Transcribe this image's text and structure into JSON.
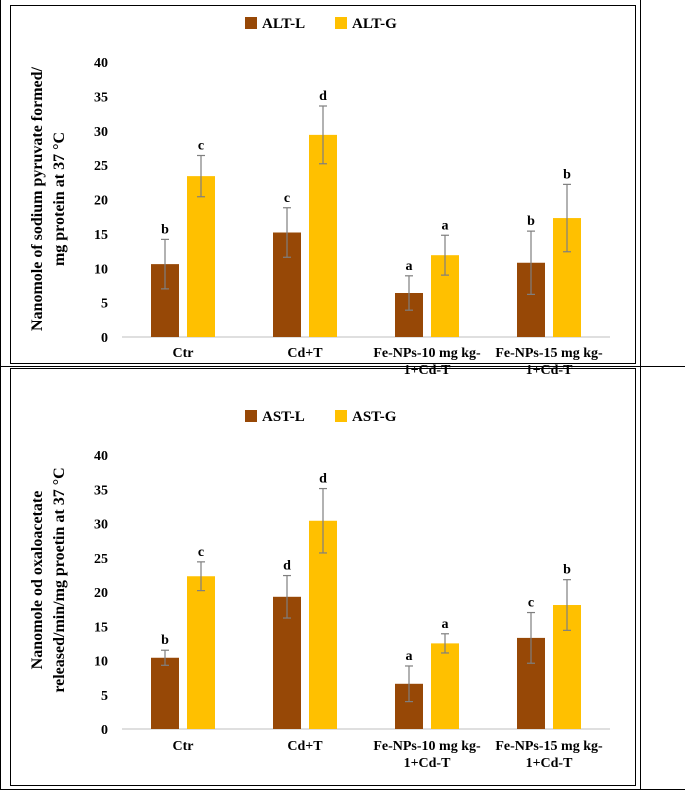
{
  "chart_data": [
    {
      "type": "bar",
      "title": "",
      "ylabel": [
        "Nanomole of sodium pyruvate formed/",
        "mg protein at 37 °C"
      ],
      "xlabel": "",
      "ylim": [
        0,
        40
      ],
      "yticks": [
        0,
        5,
        10,
        15,
        20,
        25,
        30,
        35,
        40
      ],
      "categories": [
        [
          "Ctr"
        ],
        [
          "Cd+T"
        ],
        [
          "Fe-NPs-10 mg kg-",
          "1+Cd-T"
        ],
        [
          "Fe-NPs-15 mg kg-",
          "1+Cd-T"
        ]
      ],
      "legend_position": "top-center",
      "series": [
        {
          "name": "ALT-L",
          "color": "#974806",
          "values": [
            10.6,
            15.2,
            6.4,
            10.8
          ],
          "errors": [
            3.6,
            3.6,
            2.5,
            4.6
          ],
          "letters": [
            "b",
            "c",
            "a",
            "b"
          ]
        },
        {
          "name": "ALT-G",
          "color": "#FFC000",
          "values": [
            23.4,
            29.4,
            11.9,
            17.3
          ],
          "errors": [
            3.0,
            4.2,
            2.9,
            4.9
          ],
          "letters": [
            "c",
            "d",
            "a",
            "b"
          ]
        }
      ]
    },
    {
      "type": "bar",
      "title": "",
      "ylabel": [
        "Nanomole od oxaloacetate",
        "released/min/mg proetin at 37 °C"
      ],
      "xlabel": "",
      "ylim": [
        0,
        40
      ],
      "yticks": [
        0,
        5,
        10,
        15,
        20,
        25,
        30,
        35,
        40
      ],
      "categories": [
        [
          "Ctr"
        ],
        [
          "Cd+T"
        ],
        [
          "Fe-NPs-10 mg kg-",
          "1+Cd-T"
        ],
        [
          "Fe-NPs-15 mg kg-",
          "1+Cd-T"
        ]
      ],
      "legend_position": "top-center",
      "series": [
        {
          "name": "AST-L",
          "color": "#974806",
          "values": [
            10.4,
            19.3,
            6.6,
            13.3
          ],
          "errors": [
            1.1,
            3.1,
            2.6,
            3.7
          ],
          "letters": [
            "b",
            "d",
            "a",
            "c"
          ]
        },
        {
          "name": "AST-G",
          "color": "#FFC000",
          "values": [
            22.3,
            30.4,
            12.5,
            18.1
          ],
          "errors": [
            2.1,
            4.7,
            1.4,
            3.7
          ],
          "letters": [
            "c",
            "d",
            "a",
            "b"
          ]
        }
      ]
    }
  ]
}
